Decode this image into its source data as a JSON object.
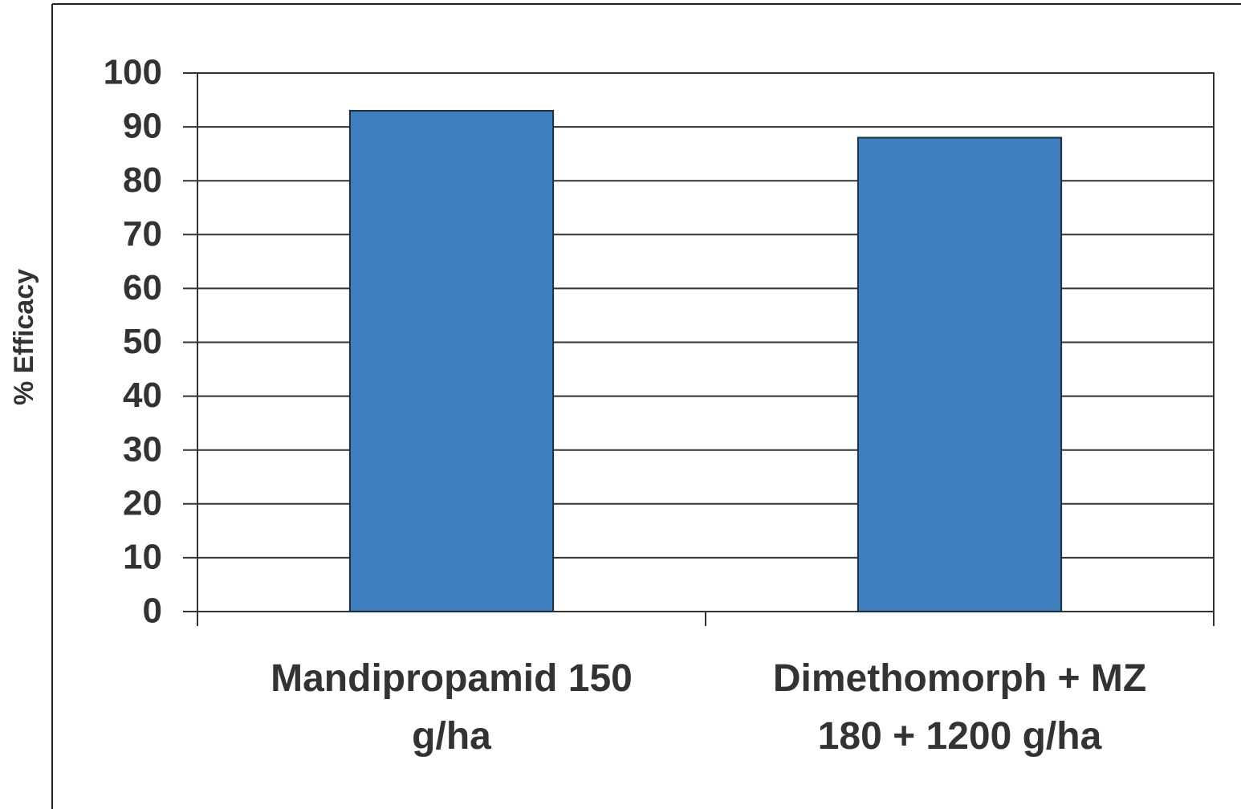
{
  "chart_data": {
    "type": "bar",
    "y_label": "% Efficacy",
    "categories": [
      "Mandipropamid 150\ng/ha",
      "Dimethomorph + MZ\n180 + 1200 g/ha"
    ],
    "values": [
      93,
      88
    ],
    "color": "#3f7ebd",
    "ylim": [
      0,
      100
    ],
    "yticks": [
      0,
      10,
      20,
      30,
      40,
      50,
      60,
      70,
      80,
      90,
      100
    ],
    "grid": true
  }
}
